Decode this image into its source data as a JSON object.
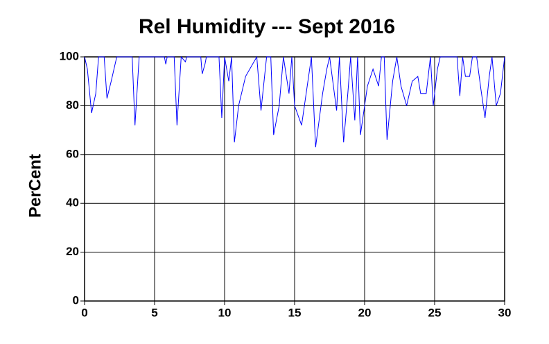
{
  "chart_data": {
    "type": "line",
    "title": "Rel Humidity --- Sept 2016",
    "y_label": "PerCent",
    "x": [
      0,
      0.2,
      0.5,
      0.8,
      1.0,
      1.4,
      1.6,
      1.9,
      2.1,
      2.3,
      3.4,
      3.6,
      3.9,
      5.7,
      5.8,
      5.9,
      6.4,
      6.6,
      6.9,
      7.2,
      7.3,
      8.3,
      8.4,
      8.6,
      8.7,
      9.6,
      9.8,
      10.0,
      10.3,
      10.5,
      10.7,
      11.0,
      11.5,
      12.0,
      12.3,
      12.6,
      13.0,
      13.3,
      13.5,
      13.9,
      14.2,
      14.6,
      14.8,
      15.0,
      15.5,
      16.0,
      16.2,
      16.5,
      17.0,
      17.3,
      17.5,
      18.0,
      18.2,
      18.5,
      18.8,
      19.0,
      19.3,
      19.5,
      19.7,
      20.2,
      20.6,
      21.0,
      21.2,
      21.4,
      21.6,
      22.0,
      22.3,
      22.6,
      23.0,
      23.4,
      23.8,
      24.0,
      24.4,
      24.7,
      24.9,
      25.2,
      25.4,
      26.6,
      26.8,
      27.0,
      27.2,
      27.5,
      27.7,
      28.0,
      28.3,
      28.6,
      28.9,
      29.1,
      29.4,
      29.7,
      30
    ],
    "series": [
      {
        "name": "Rel Humidity",
        "color": "#0000ff",
        "values": [
          100,
          95,
          77,
          85,
          100,
          100,
          83,
          90,
          95,
          100,
          100,
          72,
          100,
          100,
          97,
          100,
          100,
          72,
          100,
          98,
          100,
          100,
          93,
          97,
          100,
          100,
          75,
          100,
          90,
          100,
          65,
          80,
          92,
          97,
          100,
          78,
          100,
          100,
          68,
          80,
          100,
          85,
          100,
          80,
          72,
          92,
          100,
          63,
          85,
          95,
          100,
          78,
          100,
          65,
          85,
          100,
          74,
          100,
          68,
          88,
          95,
          88,
          100,
          100,
          66,
          90,
          100,
          88,
          80,
          90,
          92,
          85,
          85,
          100,
          80,
          95,
          100,
          100,
          84,
          100,
          92,
          92,
          100,
          100,
          87,
          75,
          92,
          100,
          80,
          85,
          100
        ]
      }
    ],
    "xlim": [
      0,
      30
    ],
    "ylim": [
      0,
      100
    ],
    "xticks": [
      0,
      5,
      10,
      15,
      20,
      25,
      30
    ],
    "yticks": [
      0,
      20,
      40,
      60,
      80,
      100
    ],
    "grid": true
  }
}
